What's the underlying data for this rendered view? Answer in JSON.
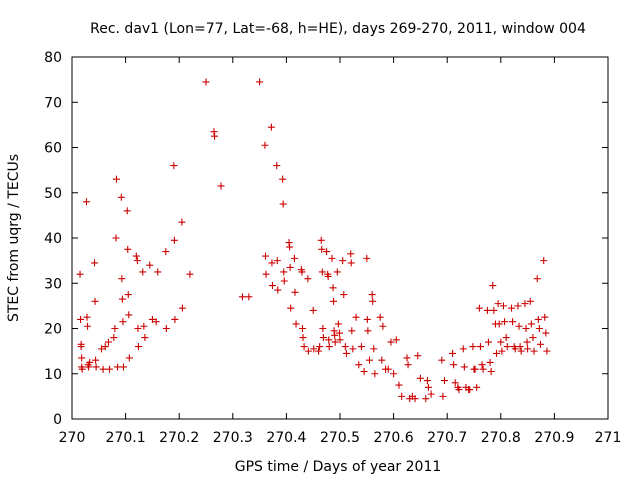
{
  "chart_data": {
    "type": "scatter",
    "title": "Rec. dav1 (Lon=77, Lat=-68, h=HE), days 269-270, 2011, window 004",
    "xlabel": "GPS time / Days of year 2011",
    "ylabel": "STEC from uqrg / TECUs",
    "xlim": [
      270,
      271
    ],
    "ylim": [
      0,
      80
    ],
    "xticks": [
      270,
      270.1,
      270.2,
      270.3,
      270.4,
      270.5,
      270.6,
      270.7,
      270.8,
      270.9,
      271
    ],
    "xtick_labels": [
      "270",
      "270.1",
      "270.2",
      "270.3",
      "270.4",
      "270.5",
      "270.6",
      "270.7",
      "270.8",
      "270.9",
      "271"
    ],
    "yticks": [
      0,
      10,
      20,
      30,
      40,
      50,
      60,
      70,
      80
    ],
    "ytick_labels": [
      "0",
      "10",
      "20",
      "30",
      "40",
      "50",
      "60",
      "70",
      "80"
    ],
    "grid": false,
    "marker": "+",
    "marker_color": "#cc0000",
    "points": [
      [
        270.015,
        32
      ],
      [
        270.016,
        22
      ],
      [
        270.017,
        16.5
      ],
      [
        270.017,
        16
      ],
      [
        270.018,
        13.5
      ],
      [
        270.018,
        11.5
      ],
      [
        270.019,
        11
      ],
      [
        270.027,
        48
      ],
      [
        270.028,
        22.5
      ],
      [
        270.029,
        20.5
      ],
      [
        270.03,
        12
      ],
      [
        270.031,
        11.5
      ],
      [
        270.033,
        12.5
      ],
      [
        270.042,
        34.5
      ],
      [
        270.043,
        26
      ],
      [
        270.044,
        13
      ],
      [
        270.045,
        11.5
      ],
      [
        270.055,
        15.5
      ],
      [
        270.058,
        11
      ],
      [
        270.062,
        16
      ],
      [
        270.068,
        17
      ],
      [
        270.07,
        11
      ],
      [
        270.078,
        18
      ],
      [
        270.08,
        20
      ],
      [
        270.082,
        40
      ],
      [
        270.083,
        53
      ],
      [
        270.085,
        11.5
      ],
      [
        270.092,
        49
      ],
      [
        270.093,
        31
      ],
      [
        270.094,
        26.5
      ],
      [
        270.095,
        21.5
      ],
      [
        270.096,
        11.5
      ],
      [
        270.103,
        46
      ],
      [
        270.104,
        37.5
      ],
      [
        270.105,
        27.5
      ],
      [
        270.106,
        23
      ],
      [
        270.107,
        13.5
      ],
      [
        270.12,
        36
      ],
      [
        270.122,
        35
      ],
      [
        270.123,
        20
      ],
      [
        270.124,
        16
      ],
      [
        270.132,
        32.5
      ],
      [
        270.134,
        20.5
      ],
      [
        270.136,
        18
      ],
      [
        270.145,
        34
      ],
      [
        270.15,
        22
      ],
      [
        270.157,
        21.5
      ],
      [
        270.16,
        32.5
      ],
      [
        270.175,
        37
      ],
      [
        270.176,
        20
      ],
      [
        270.19,
        56
      ],
      [
        270.191,
        39.5
      ],
      [
        270.192,
        22
      ],
      [
        270.205,
        43.5
      ],
      [
        270.206,
        24.5
      ],
      [
        270.22,
        32
      ],
      [
        270.25,
        74.5
      ],
      [
        270.265,
        63.5
      ],
      [
        270.266,
        62.5
      ],
      [
        270.278,
        51.5
      ],
      [
        270.318,
        27
      ],
      [
        270.33,
        27
      ],
      [
        270.35,
        74.5
      ],
      [
        270.36,
        60.5
      ],
      [
        270.361,
        36
      ],
      [
        270.362,
        32
      ],
      [
        270.372,
        64.5
      ],
      [
        270.373,
        34.5
      ],
      [
        270.374,
        29.5
      ],
      [
        270.382,
        56
      ],
      [
        270.383,
        35
      ],
      [
        270.384,
        28.5
      ],
      [
        270.393,
        53
      ],
      [
        270.394,
        47.5
      ],
      [
        270.395,
        32.5
      ],
      [
        270.396,
        30.5
      ],
      [
        270.405,
        39
      ],
      [
        270.406,
        38
      ],
      [
        270.407,
        33.5
      ],
      [
        270.408,
        24.5
      ],
      [
        270.415,
        35.5
      ],
      [
        270.416,
        28
      ],
      [
        270.418,
        21
      ],
      [
        270.428,
        33
      ],
      [
        270.429,
        32.5
      ],
      [
        270.43,
        20
      ],
      [
        270.431,
        18
      ],
      [
        270.433,
        16
      ],
      [
        270.44,
        31
      ],
      [
        270.441,
        15
      ],
      [
        270.45,
        24
      ],
      [
        270.451,
        15.5
      ],
      [
        270.46,
        15
      ],
      [
        270.462,
        16
      ],
      [
        270.465,
        39.5
      ],
      [
        270.466,
        37.5
      ],
      [
        270.467,
        32.5
      ],
      [
        270.468,
        20
      ],
      [
        270.469,
        18
      ],
      [
        270.475,
        37
      ],
      [
        270.477,
        32
      ],
      [
        270.478,
        31.5
      ],
      [
        270.479,
        17.5
      ],
      [
        270.48,
        16
      ],
      [
        270.485,
        35.5
      ],
      [
        270.487,
        29
      ],
      [
        270.488,
        26
      ],
      [
        270.489,
        19.5
      ],
      [
        270.49,
        18.5
      ],
      [
        270.491,
        17
      ],
      [
        270.495,
        32.5
      ],
      [
        270.497,
        21
      ],
      [
        270.499,
        19
      ],
      [
        270.5,
        17.5
      ],
      [
        270.505,
        35
      ],
      [
        270.507,
        27.5
      ],
      [
        270.51,
        16
      ],
      [
        270.512,
        14.5
      ],
      [
        270.52,
        36.5
      ],
      [
        270.521,
        34.5
      ],
      [
        270.522,
        19.5
      ],
      [
        270.524,
        15.5
      ],
      [
        270.53,
        22.5
      ],
      [
        270.535,
        12
      ],
      [
        270.54,
        16
      ],
      [
        270.545,
        10.5
      ],
      [
        270.55,
        35.5
      ],
      [
        270.551,
        22
      ],
      [
        270.552,
        19.5
      ],
      [
        270.555,
        13
      ],
      [
        270.56,
        27.5
      ],
      [
        270.561,
        26
      ],
      [
        270.563,
        15.5
      ],
      [
        270.565,
        10
      ],
      [
        270.575,
        22.5
      ],
      [
        270.578,
        13
      ],
      [
        270.58,
        20.5
      ],
      [
        270.585,
        11
      ],
      [
        270.59,
        11
      ],
      [
        270.595,
        17
      ],
      [
        270.6,
        10
      ],
      [
        270.605,
        17.5
      ],
      [
        270.61,
        7.5
      ],
      [
        270.615,
        5
      ],
      [
        270.625,
        13.5
      ],
      [
        270.627,
        12
      ],
      [
        270.63,
        4.5
      ],
      [
        270.635,
        5
      ],
      [
        270.64,
        4.5
      ],
      [
        270.645,
        14
      ],
      [
        270.65,
        9
      ],
      [
        270.66,
        4.5
      ],
      [
        270.663,
        8.5
      ],
      [
        270.665,
        7
      ],
      [
        270.67,
        5.5
      ],
      [
        270.69,
        13
      ],
      [
        270.692,
        5
      ],
      [
        270.695,
        8.5
      ],
      [
        270.71,
        14.5
      ],
      [
        270.712,
        12
      ],
      [
        270.715,
        8
      ],
      [
        270.72,
        7
      ],
      [
        270.722,
        6.5
      ],
      [
        270.73,
        15.5
      ],
      [
        270.732,
        11.5
      ],
      [
        270.735,
        7
      ],
      [
        270.74,
        6.5
      ],
      [
        270.742,
        6.5
      ],
      [
        270.748,
        16
      ],
      [
        270.75,
        11
      ],
      [
        270.752,
        11
      ],
      [
        270.755,
        7
      ],
      [
        270.76,
        24.5
      ],
      [
        270.762,
        16
      ],
      [
        270.765,
        12
      ],
      [
        270.767,
        11
      ],
      [
        270.775,
        24
      ],
      [
        270.777,
        17
      ],
      [
        270.78,
        12.5
      ],
      [
        270.782,
        10.5
      ],
      [
        270.785,
        29.5
      ],
      [
        270.787,
        24
      ],
      [
        270.79,
        21
      ],
      [
        270.792,
        14.5
      ],
      [
        270.795,
        25.5
      ],
      [
        270.797,
        21
      ],
      [
        270.8,
        17
      ],
      [
        270.802,
        15
      ],
      [
        270.805,
        25
      ],
      [
        270.807,
        21.5
      ],
      [
        270.81,
        18
      ],
      [
        270.812,
        16
      ],
      [
        270.82,
        24.5
      ],
      [
        270.822,
        21.5
      ],
      [
        270.825,
        16
      ],
      [
        270.827,
        15.5
      ],
      [
        270.832,
        25
      ],
      [
        270.834,
        20.5
      ],
      [
        270.836,
        16
      ],
      [
        270.838,
        15
      ],
      [
        270.845,
        25.5
      ],
      [
        270.847,
        20
      ],
      [
        270.849,
        17
      ],
      [
        270.85,
        15.5
      ],
      [
        270.855,
        26
      ],
      [
        270.857,
        21
      ],
      [
        270.86,
        18
      ],
      [
        270.862,
        15
      ],
      [
        270.868,
        31
      ],
      [
        270.87,
        22
      ],
      [
        270.872,
        20
      ],
      [
        270.874,
        16.5
      ],
      [
        270.88,
        35
      ],
      [
        270.882,
        22.5
      ],
      [
        270.884,
        19
      ],
      [
        270.886,
        15
      ]
    ]
  }
}
